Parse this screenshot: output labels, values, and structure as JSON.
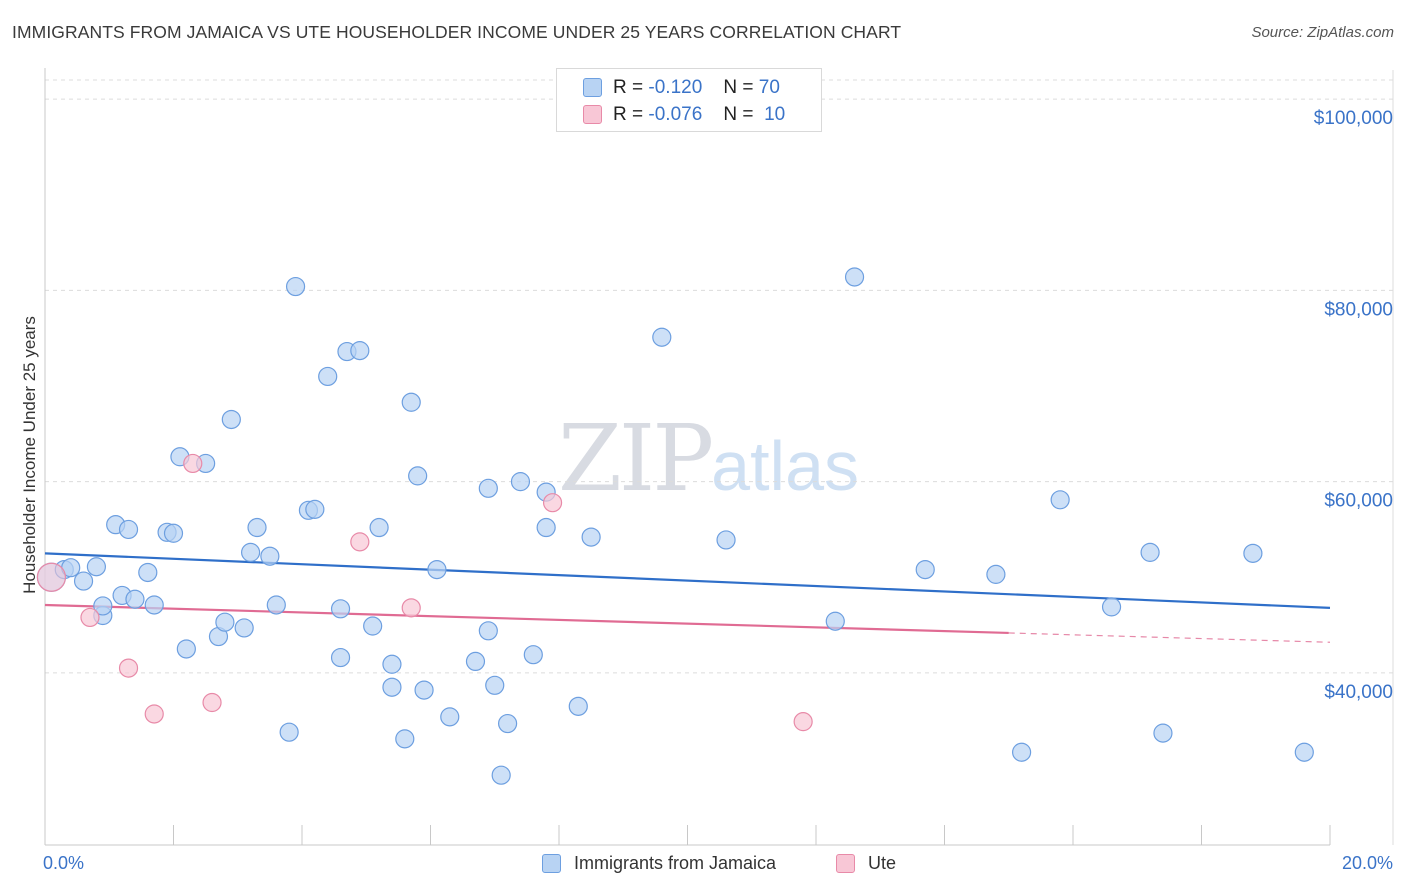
{
  "header": {
    "title": "IMMIGRANTS FROM JAMAICA VS UTE HOUSEHOLDER INCOME UNDER 25 YEARS CORRELATION CHART",
    "source": "Source: ZipAtlas.com"
  },
  "watermark": {
    "zip": "ZIP",
    "atlas": "atlas"
  },
  "legend": {
    "rows": [
      {
        "r_label": "R =",
        "r_value": "-0.120",
        "n_label": "N =",
        "n_value": "70"
      },
      {
        "r_label": "R =",
        "r_value": "-0.076",
        "n_label": "N =",
        "n_value": "10"
      }
    ]
  },
  "colors": {
    "jamaica_fill": "#b8d3f3",
    "jamaica_stroke": "#6d9fe0",
    "jamaica_line": "#2f6fc9",
    "ute_fill": "#f8c7d6",
    "ute_stroke": "#e88aa8",
    "ute_line": "#e06b93",
    "axis_tick_label": "#3a73c8",
    "grid": "#dcdcdc"
  },
  "chart_data": {
    "type": "scatter",
    "title": "IMMIGRANTS FROM JAMAICA VS UTE HOUSEHOLDER INCOME UNDER 25 YEARS CORRELATION CHART",
    "xlabel": "",
    "ylabel": "Householder Income Under 25 years",
    "xlim": [
      0,
      20
    ],
    "ylim": [
      22000,
      102000
    ],
    "x_tick_labels": {
      "min": "0.0%",
      "max": "20.0%"
    },
    "y_ticks": [
      {
        "value": 40000,
        "label": "$40,000"
      },
      {
        "value": 60000,
        "label": "$60,000"
      },
      {
        "value": 80000,
        "label": "$80,000"
      },
      {
        "value": 100000,
        "label": "$100,000"
      }
    ],
    "series": [
      {
        "name": "Immigrants from Jamaica",
        "r": -0.12,
        "n": 70,
        "trend": {
          "x": [
            0,
            20
          ],
          "y": [
            52500,
            46800
          ],
          "dashed_from": null
        },
        "points": [
          [
            0.1,
            50000
          ],
          [
            0.3,
            50800
          ],
          [
            0.4,
            51000
          ],
          [
            0.6,
            49600
          ],
          [
            0.8,
            51100
          ],
          [
            0.9,
            46000
          ],
          [
            0.9,
            47000
          ],
          [
            1.1,
            55500
          ],
          [
            1.2,
            48100
          ],
          [
            1.3,
            55000
          ],
          [
            1.4,
            47700
          ],
          [
            1.6,
            50500
          ],
          [
            1.7,
            47100
          ],
          [
            1.9,
            54700
          ],
          [
            2.0,
            54600
          ],
          [
            2.1,
            62600
          ],
          [
            2.2,
            42500
          ],
          [
            2.5,
            61900
          ],
          [
            2.7,
            43800
          ],
          [
            2.8,
            45300
          ],
          [
            2.9,
            66500
          ],
          [
            3.1,
            44700
          ],
          [
            3.2,
            52600
          ],
          [
            3.3,
            55200
          ],
          [
            3.5,
            52200
          ],
          [
            3.6,
            47100
          ],
          [
            3.8,
            33800
          ],
          [
            3.9,
            80400
          ],
          [
            4.1,
            57000
          ],
          [
            4.2,
            57100
          ],
          [
            4.4,
            71000
          ],
          [
            4.6,
            46700
          ],
          [
            4.6,
            41600
          ],
          [
            4.7,
            73600
          ],
          [
            4.9,
            73700
          ],
          [
            5.1,
            44900
          ],
          [
            5.2,
            55200
          ],
          [
            5.4,
            40900
          ],
          [
            5.4,
            38500
          ],
          [
            5.6,
            33100
          ],
          [
            5.7,
            68300
          ],
          [
            5.8,
            60600
          ],
          [
            5.9,
            38200
          ],
          [
            6.1,
            50800
          ],
          [
            6.3,
            35400
          ],
          [
            6.7,
            41200
          ],
          [
            6.9,
            44400
          ],
          [
            6.9,
            59300
          ],
          [
            7.0,
            38700
          ],
          [
            7.1,
            29300
          ],
          [
            7.2,
            34700
          ],
          [
            7.4,
            60000
          ],
          [
            7.6,
            41900
          ],
          [
            7.8,
            55200
          ],
          [
            7.8,
            58900
          ],
          [
            8.3,
            36500
          ],
          [
            8.5,
            54200
          ],
          [
            9.6,
            75100
          ],
          [
            10.6,
            53900
          ],
          [
            12.3,
            45400
          ],
          [
            12.6,
            81400
          ],
          [
            13.7,
            50800
          ],
          [
            14.8,
            50300
          ],
          [
            15.2,
            31700
          ],
          [
            15.8,
            58100
          ],
          [
            16.6,
            46900
          ],
          [
            17.2,
            52600
          ],
          [
            17.4,
            33700
          ],
          [
            18.8,
            52500
          ],
          [
            19.6,
            31700
          ]
        ]
      },
      {
        "name": "Ute",
        "r": -0.076,
        "n": 10,
        "trend": {
          "x": [
            0,
            20
          ],
          "y": [
            47100,
            43200
          ],
          "dashed_from": 15.0
        },
        "points": [
          [
            0.1,
            50000
          ],
          [
            0.7,
            45800
          ],
          [
            1.3,
            40500
          ],
          [
            1.7,
            35700
          ],
          [
            2.3,
            61900
          ],
          [
            2.6,
            36900
          ],
          [
            4.9,
            53700
          ],
          [
            5.7,
            46800
          ],
          [
            7.9,
            57800
          ],
          [
            11.8,
            34900
          ]
        ]
      }
    ]
  },
  "bottom_legend": {
    "items": [
      {
        "label": "Immigrants from Jamaica"
      },
      {
        "label": "Ute"
      }
    ]
  }
}
